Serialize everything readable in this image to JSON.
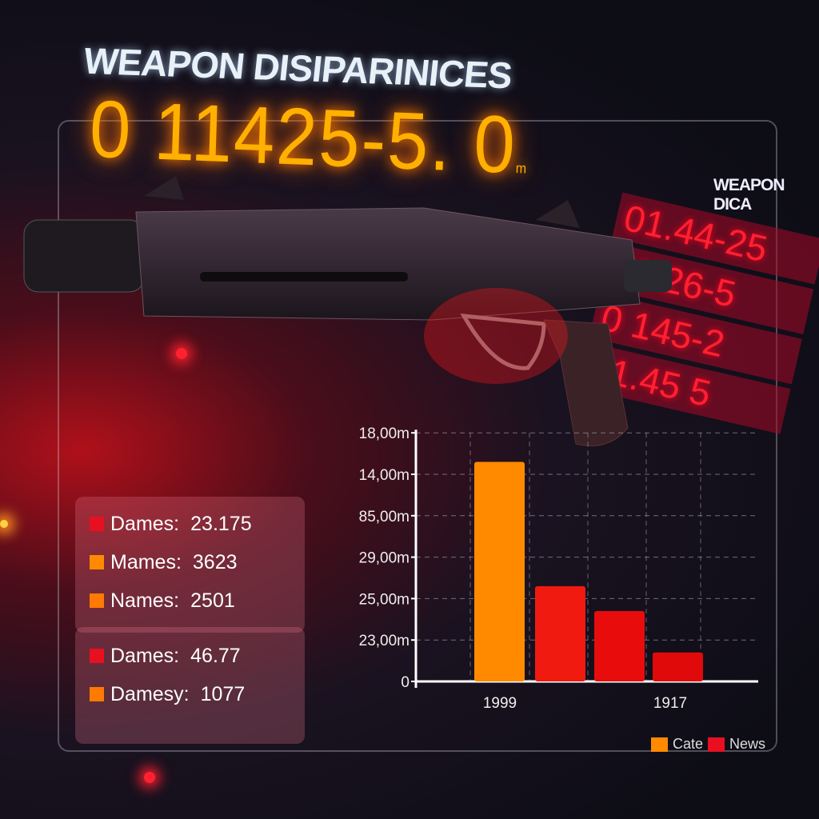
{
  "header": {
    "title": "WEAPON DISIPARINICES",
    "readout": "0 11425-5. 0",
    "readout_unit": "m"
  },
  "side": {
    "title": "WEAPON DICA",
    "values": [
      "01.44-25",
      "31.26-5",
      "0 145-2",
      "21.45 5"
    ]
  },
  "stats_top": [
    {
      "label": "Dames:",
      "value": "23.175",
      "color": "#e81020"
    },
    {
      "label": "Mames:",
      "value": "3623",
      "color": "#ff8a00"
    },
    {
      "label": "Names:",
      "value": "2501",
      "color": "#ff7a00"
    }
  ],
  "stats_bottom": [
    {
      "label": "Dames:",
      "value": "46.77",
      "color": "#e81020"
    },
    {
      "label": "Damesy:",
      "value": "1077",
      "color": "#ff7a00"
    }
  ],
  "chart_data": {
    "type": "bar",
    "y_tick_labels": [
      "0",
      "23,00m",
      "25,00m",
      "29,00m",
      "85,00m",
      "14,00m",
      "18,00m"
    ],
    "x_tick_labels": [
      "1999",
      "1917"
    ],
    "values": [
      5.3,
      2.3,
      1.7,
      0.7
    ],
    "bar_colors": [
      "#ff8a00",
      "#f01a10",
      "#e80c0c",
      "#e00a0a"
    ],
    "grid": true,
    "legend": [
      {
        "name": "Cate",
        "color": "#ff8a00"
      },
      {
        "name": "News",
        "color": "#e81020"
      }
    ],
    "legend_position": "bottom-right"
  }
}
